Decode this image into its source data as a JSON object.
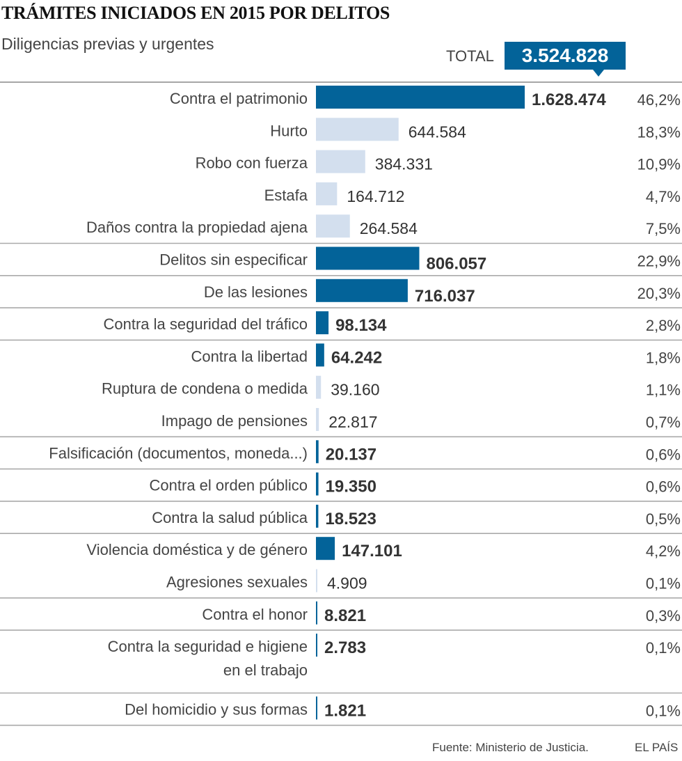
{
  "header": {
    "title": "TRÁMITES INICIADOS EN 2015 POR DELITOS",
    "subtitle": "Diligencias previas y urgentes",
    "total_label": "TOTAL",
    "total_value": "3.524.828"
  },
  "footer": {
    "source": "Fuente: Ministerio de Justicia.",
    "brand": "EL PAÍS"
  },
  "colors": {
    "main": "#036399",
    "sub": "#d3dfee",
    "text": "#333333",
    "rule": "#999999"
  },
  "chart_data": {
    "type": "bar",
    "orientation": "horizontal",
    "title": "TRÁMITES INICIADOS EN 2015 POR DELITOS",
    "subtitle": "Diligencias previas y urgentes",
    "total": 3524828,
    "xlim": [
      0,
      1628474
    ],
    "grid": false,
    "rows": [
      {
        "label": "Contra el patrimonio",
        "value": 1628474,
        "value_label": "1.628.474",
        "pct": "46,2%",
        "kind": "main",
        "group_start": true
      },
      {
        "label": "Hurto",
        "value": 644584,
        "value_label": "644.584",
        "pct": "18,3%",
        "kind": "sub",
        "group_start": false
      },
      {
        "label": "Robo con fuerza",
        "value": 384331,
        "value_label": "384.331",
        "pct": "10,9%",
        "kind": "sub",
        "group_start": false
      },
      {
        "label": "Estafa",
        "value": 164712,
        "value_label": "164.712",
        "pct": "4,7%",
        "kind": "sub",
        "group_start": false
      },
      {
        "label": "Daños contra la propiedad ajena",
        "value": 264584,
        "value_label": "264.584",
        "pct": "7,5%",
        "kind": "sub",
        "group_start": false
      },
      {
        "label": "Delitos sin especificar",
        "value": 806057,
        "value_label": "806.057",
        "pct": "22,9%",
        "kind": "main",
        "group_start": true
      },
      {
        "label": "De las lesiones",
        "value": 716037,
        "value_label": "716.037",
        "pct": "20,3%",
        "kind": "main",
        "group_start": true
      },
      {
        "label": "Contra la seguridad del tráfico",
        "value": 98134,
        "value_label": "98.134",
        "pct": "2,8%",
        "kind": "main",
        "group_start": true
      },
      {
        "label": "Contra la libertad",
        "value": 64242,
        "value_label": "64.242",
        "pct": "1,8%",
        "kind": "main",
        "group_start": true
      },
      {
        "label": "Ruptura de condena o medida",
        "value": 39160,
        "value_label": "39.160",
        "pct": "1,1%",
        "kind": "sub",
        "group_start": false
      },
      {
        "label": "Impago de pensiones",
        "value": 22817,
        "value_label": "22.817",
        "pct": "0,7%",
        "kind": "sub",
        "group_start": false
      },
      {
        "label": "Falsificación (documentos, moneda...)",
        "value": 20137,
        "value_label": "20.137",
        "pct": "0,6%",
        "kind": "main",
        "group_start": true
      },
      {
        "label": "Contra el orden público",
        "value": 19350,
        "value_label": "19.350",
        "pct": "0,6%",
        "kind": "main",
        "group_start": true
      },
      {
        "label": "Contra la salud pública",
        "value": 18523,
        "value_label": "18.523",
        "pct": "0,5%",
        "kind": "main",
        "group_start": true
      },
      {
        "label": "Violencia doméstica y de género",
        "value": 147101,
        "value_label": "147.101",
        "pct": "4,2%",
        "kind": "main",
        "group_start": true
      },
      {
        "label": "Agresiones sexuales",
        "value": 4909,
        "value_label": "4.909",
        "pct": "0,1%",
        "kind": "sub",
        "group_start": false
      },
      {
        "label": "Contra el honor",
        "value": 8821,
        "value_label": "8.821",
        "pct": "0,3%",
        "kind": "main",
        "group_start": true
      },
      {
        "label": "Contra la seguridad e higiene\nen el trabajo",
        "value": 2783,
        "value_label": "2.783",
        "pct": "0,1%",
        "kind": "main",
        "group_start": true,
        "tall": true
      },
      {
        "label": "Del homicidio y sus formas",
        "value": 1821,
        "value_label": "1.821",
        "pct": "0,1%",
        "kind": "main",
        "group_start": true
      }
    ]
  }
}
